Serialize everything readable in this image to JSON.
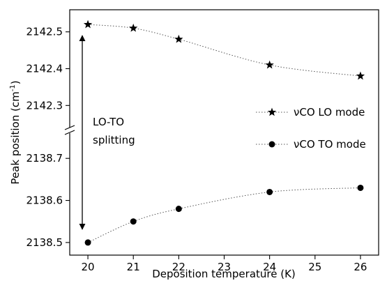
{
  "chart_data": {
    "type": "line",
    "xlabel": "Deposition temperature (K)",
    "ylabel": "Peak position (cm",
    "ylabel_sup": "-1",
    "ylabel_close": ")",
    "x_ticks": [
      "20",
      "21",
      "22",
      "23",
      "24",
      "25",
      "26"
    ],
    "xlim": [
      19.6,
      26.4
    ],
    "y_axis_broken": true,
    "y_upper_segment": {
      "ylim": [
        2142.24,
        2142.56
      ],
      "ticks": [
        2142.3,
        2142.4,
        2142.5
      ],
      "tick_labels": [
        "2142.3",
        "2142.4",
        "2142.5"
      ]
    },
    "y_lower_segment": {
      "ylim": [
        2138.47,
        2138.76
      ],
      "ticks": [
        2138.5,
        2138.6,
        2138.7
      ],
      "tick_labels": [
        "2138.5",
        "2138.6",
        "2138.7"
      ]
    },
    "series": [
      {
        "name": "νCO LO mode",
        "marker": "star",
        "segment": "upper",
        "x": [
          20,
          21,
          22,
          24,
          26
        ],
        "y": [
          2142.52,
          2142.51,
          2142.48,
          2142.41,
          2142.38
        ]
      },
      {
        "name": "νCO TO mode",
        "marker": "circle",
        "segment": "lower",
        "x": [
          20,
          21,
          22,
          24,
          26
        ],
        "y": [
          2138.5,
          2138.55,
          2138.58,
          2138.62,
          2138.63
        ]
      }
    ],
    "annotation": {
      "line1": "LO-TO",
      "line2": "splitting"
    },
    "legend_position": "center-right",
    "grid": false,
    "colors": {
      "markers": "#000000",
      "lines": "#555555"
    }
  }
}
